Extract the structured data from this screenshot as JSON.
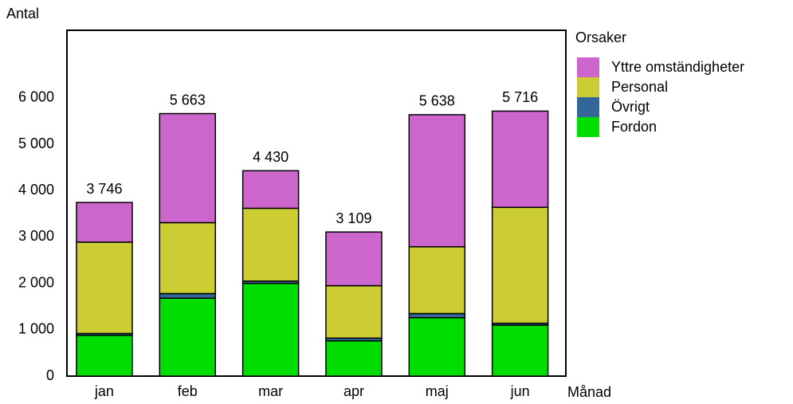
{
  "chart_data": {
    "type": "stacked-bar",
    "y_label": "Antal",
    "x_label": "Månad",
    "legend_title": "Orsaker",
    "legend_position": "right",
    "categories": [
      "jan",
      "feb",
      "mar",
      "apr",
      "maj",
      "jun"
    ],
    "series": [
      {
        "name": "Fordon",
        "color": "#00dd00",
        "values": [
          880,
          1680,
          2000,
          760,
          1260,
          1100
        ]
      },
      {
        "name": "Övrigt",
        "color": "#336699",
        "values": [
          40,
          100,
          50,
          60,
          90,
          40
        ]
      },
      {
        "name": "Personal",
        "color": "#cccc33",
        "values": [
          1970,
          1530,
          1570,
          1130,
          1440,
          2500
        ]
      },
      {
        "name": "Yttre omständigheter",
        "color": "#cc66cc",
        "values": [
          856,
          2353,
          810,
          1159,
          2848,
          2076
        ]
      }
    ],
    "totals": [
      3746,
      5663,
      4430,
      3109,
      5638,
      5716
    ],
    "total_value_labels": [
      "3 746",
      "5 663",
      "4 430",
      "3 109",
      "5 638",
      "5 716"
    ],
    "ylim": [
      0,
      7460
    ],
    "yticks": [
      0,
      {
        "value": 1000,
        "label": "1 000"
      },
      {
        "value": 2000,
        "label": "2 000"
      },
      {
        "value": 3000,
        "label": "3 000"
      },
      {
        "value": 4000,
        "label": "4 000"
      },
      {
        "value": 5000,
        "label": "5 000"
      },
      {
        "value": 6000,
        "label": "6 000"
      }
    ]
  }
}
